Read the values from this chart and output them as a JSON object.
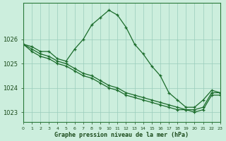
{
  "title": "Graphe pression niveau de la mer (hPa)",
  "background_color": "#cceedd",
  "grid_color": "#99ccbb",
  "line_color": "#1a6b2a",
  "xlim": [
    0,
    23
  ],
  "ylim": [
    1022.6,
    1027.5
  ],
  "yticks": [
    1023,
    1024,
    1025,
    1026
  ],
  "xtick_labels": [
    "0",
    "1",
    "2",
    "3",
    "4",
    "5",
    "6",
    "7",
    "8",
    "9",
    "10",
    "11",
    "12",
    "13",
    "14",
    "15",
    "16",
    "17",
    "18",
    "19",
    "20",
    "21",
    "22",
    "23"
  ],
  "series1_x": [
    0,
    1,
    2,
    3,
    4,
    5,
    6,
    7,
    8,
    9,
    10,
    11,
    12,
    13,
    14,
    15,
    16,
    17,
    18,
    19,
    20,
    21,
    22,
    23
  ],
  "series1_y": [
    1025.8,
    1025.7,
    1025.5,
    1025.5,
    1025.2,
    1025.1,
    1025.6,
    1026.0,
    1026.6,
    1026.9,
    1027.2,
    1027.0,
    1026.5,
    1025.8,
    1025.4,
    1024.9,
    1024.5,
    1023.8,
    1023.5,
    1023.2,
    1023.2,
    1023.5,
    1023.9,
    1023.8
  ],
  "series2_x": [
    0,
    1,
    2,
    3,
    4,
    5,
    6,
    7,
    8,
    9,
    10,
    11,
    12,
    13,
    14,
    15,
    16,
    17,
    18,
    19,
    20,
    21,
    22,
    23
  ],
  "series2_y": [
    1025.8,
    1025.5,
    1025.3,
    1025.2,
    1025.0,
    1024.9,
    1024.7,
    1024.5,
    1024.4,
    1024.2,
    1024.0,
    1023.9,
    1023.7,
    1023.6,
    1023.5,
    1023.4,
    1023.3,
    1023.2,
    1023.1,
    1023.1,
    1023.0,
    1023.1,
    1023.7,
    1023.7
  ],
  "series3_x": [
    0,
    1,
    2,
    3,
    4,
    5,
    6,
    7,
    8,
    9,
    10,
    11,
    12,
    13,
    14,
    15,
    16,
    17,
    18,
    19,
    20,
    21,
    22,
    23
  ],
  "series3_y": [
    1025.8,
    1025.6,
    1025.4,
    1025.3,
    1025.1,
    1025.0,
    1024.8,
    1024.6,
    1024.5,
    1024.3,
    1024.1,
    1024.0,
    1023.8,
    1023.7,
    1023.6,
    1023.5,
    1023.4,
    1023.3,
    1023.2,
    1023.1,
    1023.1,
    1023.2,
    1023.8,
    1023.8
  ]
}
